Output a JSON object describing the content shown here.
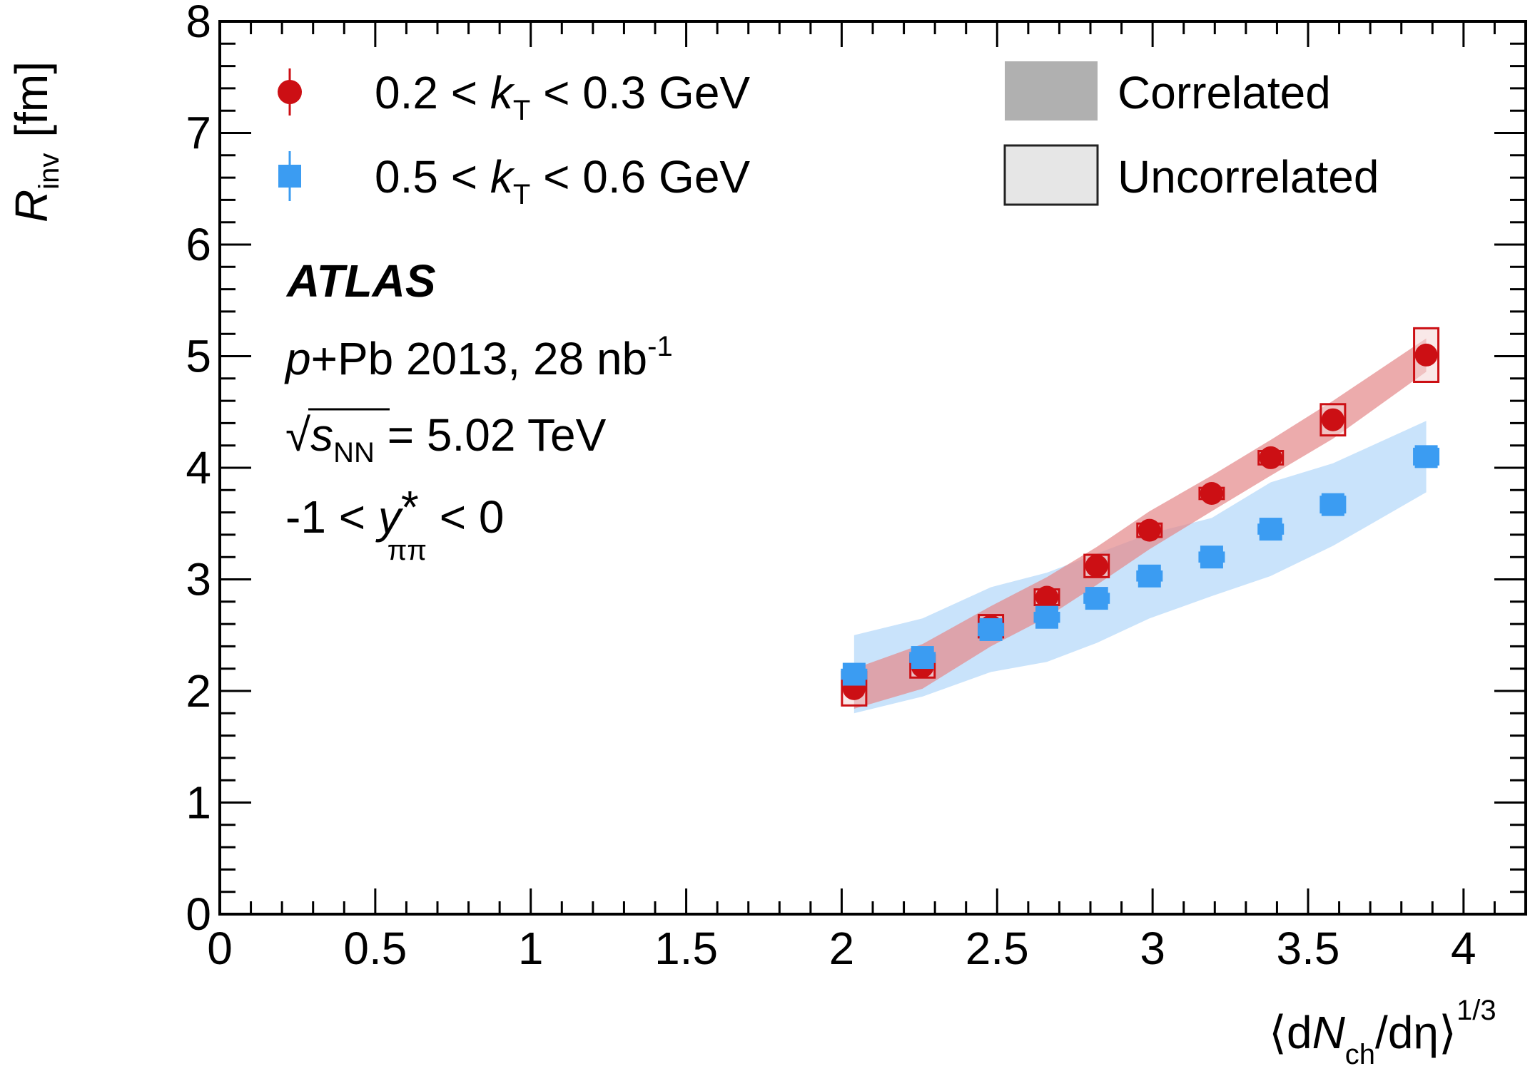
{
  "chart_data": {
    "type": "scatter",
    "title": "",
    "xlabel": {
      "open": "⟨",
      "d1": "d",
      "N": "N",
      "N_sub": "ch",
      "slash": "/d",
      "eta": "η",
      "close": "⟩",
      "exponent": "1/3"
    },
    "ylabel": {
      "R": "R",
      "R_sub": "inv",
      "unit": "[fm]"
    },
    "xlim": [
      0,
      4.2
    ],
    "ylim": [
      0,
      8
    ],
    "x_tick_labels": [
      "0",
      "0.5",
      "1",
      "1.5",
      "2",
      "2.5",
      "3",
      "3.5",
      "4"
    ],
    "x_tick_values": [
      0,
      0.5,
      1,
      1.5,
      2,
      2.5,
      3,
      3.5,
      4
    ],
    "y_tick_labels": [
      "0",
      "1",
      "2",
      "3",
      "4",
      "5",
      "6",
      "7",
      "8"
    ],
    "y_tick_values": [
      0,
      1,
      2,
      3,
      4,
      5,
      6,
      7,
      8
    ],
    "legend": {
      "series": [
        {
          "prefix": "0.2 < ",
          "k": "k",
          "k_sub": "T",
          "suffix": " < 0.3 GeV",
          "marker": "circle",
          "color": "#cc0f14"
        },
        {
          "prefix": "0.5 < ",
          "k": "k",
          "k_sub": "T",
          "suffix": " < 0.6 GeV",
          "marker": "square",
          "color": "#3b9cf2"
        }
      ],
      "bands": [
        {
          "label": "Correlated",
          "color": "#b0b0b0"
        },
        {
          "label": "Uncorrelated",
          "color": "#e6e6e6",
          "border": "#222222"
        }
      ]
    },
    "annotations": {
      "experiment": "ATLAS",
      "dataset": {
        "p": "p",
        "rest": "+Pb 2013, 28 nb",
        "sup": "-1"
      },
      "energy": {
        "root": "√",
        "s": "s",
        "s_sub": "NN",
        "rest": " = 5.02 TeV"
      },
      "rapidity": {
        "prefix": "-1 < ",
        "y": "y",
        "star": "*",
        "sub": "ππ",
        "suffix": " < 0"
      }
    },
    "series": [
      {
        "name": "0.2 < kT < 0.3 GeV",
        "color": "#cc0f14",
        "band_color": "#e58a8c",
        "box_color": "#cc0f14",
        "x": [
          2.04,
          2.26,
          2.48,
          2.66,
          2.82,
          2.99,
          3.19,
          3.38,
          3.58,
          3.88
        ],
        "y": [
          2.02,
          2.22,
          2.58,
          2.84,
          3.12,
          3.44,
          3.77,
          4.09,
          4.43,
          5.01
        ],
        "uncorrelated_err": [
          0.15,
          0.1,
          0.1,
          0.07,
          0.1,
          0.06,
          0.05,
          0.06,
          0.14,
          0.24
        ],
        "correlated_err": [
          0.18,
          0.2,
          0.18,
          0.18,
          0.17,
          0.17,
          0.16,
          0.16,
          0.17,
          0.15
        ]
      },
      {
        "name": "0.5 < kT < 0.6 GeV",
        "color": "#3b9cf2",
        "band_color": "#c6e1fb",
        "box_color": "#3b9cf2",
        "x": [
          2.04,
          2.26,
          2.48,
          2.66,
          2.82,
          2.99,
          3.19,
          3.38,
          3.58,
          3.88
        ],
        "y": [
          2.15,
          2.3,
          2.55,
          2.66,
          2.83,
          3.03,
          3.2,
          3.45,
          3.67,
          4.1
        ],
        "uncorrelated_err": [
          0.04,
          0.04,
          0.05,
          0.04,
          0.04,
          0.04,
          0.04,
          0.04,
          0.07,
          0.07
        ],
        "correlated_err": [
          0.35,
          0.35,
          0.38,
          0.4,
          0.4,
          0.38,
          0.35,
          0.42,
          0.37,
          0.32
        ]
      }
    ]
  }
}
